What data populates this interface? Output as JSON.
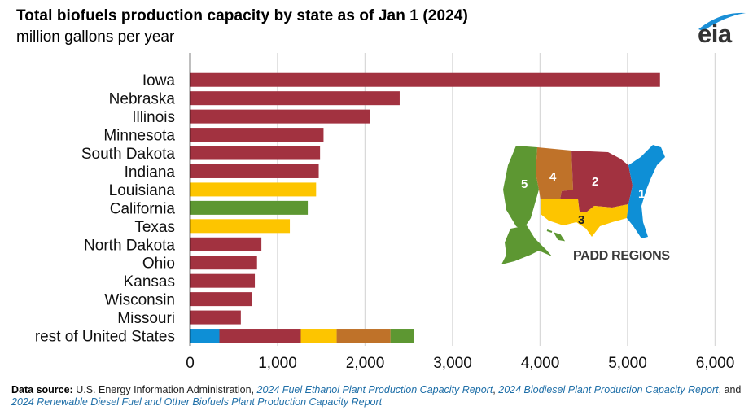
{
  "header": {
    "title": "Total biofuels production capacity by state as of Jan 1 (2024)",
    "subtitle": "million gallons per year",
    "logo_text": "eia"
  },
  "colors": {
    "padd1": "#0e8fd6",
    "padd2": "#a23240",
    "padd3": "#fdc500",
    "padd4": "#bf7229",
    "padd5": "#5d9732",
    "grid": "#d9d9d9",
    "axis": "#000000",
    "link": "#1f6fa8"
  },
  "inset_map": {
    "label": "PADD REGIONS",
    "regions": [
      {
        "id": "1",
        "label": "1",
        "color_key": "padd1"
      },
      {
        "id": "2",
        "label": "2",
        "color_key": "padd2"
      },
      {
        "id": "3",
        "label": "3",
        "color_key": "padd3"
      },
      {
        "id": "4",
        "label": "4",
        "color_key": "padd4"
      },
      {
        "id": "5",
        "label": "5",
        "color_key": "padd5"
      }
    ]
  },
  "chart_data": {
    "type": "bar",
    "orientation": "horizontal",
    "title": "Total biofuels production capacity by state as of Jan 1 (2024)",
    "subtitle": "million gallons per year",
    "xlabel": "",
    "ylabel": "",
    "xlim": [
      0,
      6000
    ],
    "xticks": [
      0,
      1000,
      2000,
      3000,
      4000,
      5000,
      6000
    ],
    "xtick_labels": [
      "0",
      "1,000",
      "2,000",
      "3,000",
      "4,000",
      "5,000",
      "6,000"
    ],
    "grid": "vertical",
    "legend": "inset map (PADD regions) at right",
    "categories": [
      "Iowa",
      "Nebraska",
      "Illinois",
      "Minnesota",
      "South Dakota",
      "Indiana",
      "Louisiana",
      "California",
      "Texas",
      "North Dakota",
      "Ohio",
      "Kansas",
      "Wisconsin",
      "Missouri",
      "rest of United States"
    ],
    "bars": [
      {
        "category": "Iowa",
        "segments": [
          {
            "padd": "2",
            "value": 5370
          }
        ]
      },
      {
        "category": "Nebraska",
        "segments": [
          {
            "padd": "2",
            "value": 2395
          }
        ]
      },
      {
        "category": "Illinois",
        "segments": [
          {
            "padd": "2",
            "value": 2060
          }
        ]
      },
      {
        "category": "Minnesota",
        "segments": [
          {
            "padd": "2",
            "value": 1525
          }
        ]
      },
      {
        "category": "South Dakota",
        "segments": [
          {
            "padd": "2",
            "value": 1485
          }
        ]
      },
      {
        "category": "Indiana",
        "segments": [
          {
            "padd": "2",
            "value": 1470
          }
        ]
      },
      {
        "category": "Louisiana",
        "segments": [
          {
            "padd": "3",
            "value": 1440
          }
        ]
      },
      {
        "category": "California",
        "segments": [
          {
            "padd": "5",
            "value": 1345
          }
        ]
      },
      {
        "category": "Texas",
        "segments": [
          {
            "padd": "3",
            "value": 1140
          }
        ]
      },
      {
        "category": "North Dakota",
        "segments": [
          {
            "padd": "2",
            "value": 815
          }
        ]
      },
      {
        "category": "Ohio",
        "segments": [
          {
            "padd": "2",
            "value": 765
          }
        ]
      },
      {
        "category": "Kansas",
        "segments": [
          {
            "padd": "2",
            "value": 740
          }
        ]
      },
      {
        "category": "Wisconsin",
        "segments": [
          {
            "padd": "2",
            "value": 705
          }
        ]
      },
      {
        "category": "Missouri",
        "segments": [
          {
            "padd": "2",
            "value": 580
          }
        ]
      },
      {
        "category": "rest of United States",
        "segments": [
          {
            "padd": "1",
            "value": 335
          },
          {
            "padd": "2",
            "value": 930
          },
          {
            "padd": "3",
            "value": 410
          },
          {
            "padd": "4",
            "value": 615
          },
          {
            "padd": "5",
            "value": 270
          }
        ]
      }
    ]
  },
  "footer": {
    "source_label": "Data source:",
    "source_text": " U.S. Energy Information Administration, ",
    "link1": "2024 Fuel Ethanol Plant Production Capacity Report",
    "sep1": ", ",
    "link2": "2024 Biodiesel Plant Production Capacity Report",
    "sep2": ", and ",
    "link3": "2024 Renewable Diesel Fuel and Other Biofuels Plant Production Capacity Report"
  }
}
